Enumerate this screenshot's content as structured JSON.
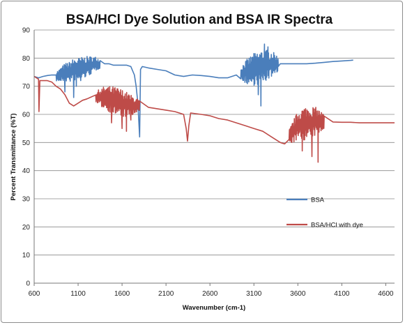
{
  "chart_data": {
    "type": "line",
    "title": "BSA/HCl Dye Solution and BSA IR Spectra",
    "xlabel": "Wavenumber (cm-1)",
    "ylabel": "Percent Transmittance (%T)",
    "xlim": [
      600,
      4700
    ],
    "ylim": [
      0,
      90
    ],
    "x_ticks": [
      600,
      1100,
      1600,
      2100,
      2600,
      3100,
      3600,
      4100,
      4600
    ],
    "y_ticks": [
      0,
      10,
      20,
      30,
      40,
      50,
      60,
      70,
      80,
      90
    ],
    "grid": "horizontal",
    "legend_position": "right",
    "series": [
      {
        "name": "BSA",
        "color": "#4a7ebb",
        "points": [
          [
            600,
            73.5
          ],
          [
            650,
            73
          ],
          [
            700,
            73.5
          ],
          [
            750,
            73.8
          ],
          [
            800,
            74
          ],
          [
            850,
            73.5
          ],
          [
            900,
            74
          ],
          [
            950,
            75
          ],
          [
            1000,
            75
          ],
          [
            1050,
            76
          ],
          [
            1100,
            76
          ],
          [
            1150,
            76.5
          ],
          [
            1200,
            77
          ],
          [
            1250,
            77.5
          ],
          [
            1300,
            78
          ],
          [
            1350,
            78
          ],
          [
            1400,
            78
          ],
          [
            1450,
            78
          ],
          [
            1500,
            77.5
          ],
          [
            1550,
            77.5
          ],
          [
            1600,
            77.5
          ],
          [
            1650,
            77.5
          ],
          [
            1700,
            77
          ],
          [
            1740,
            74
          ],
          [
            1760,
            70
          ],
          [
            1780,
            64
          ],
          [
            1800,
            52
          ],
          [
            1810,
            76
          ],
          [
            1830,
            77
          ],
          [
            1900,
            76.5
          ],
          [
            2000,
            76
          ],
          [
            2100,
            75.5
          ],
          [
            2200,
            74
          ],
          [
            2300,
            73.5
          ],
          [
            2400,
            74
          ],
          [
            2500,
            73.8
          ],
          [
            2600,
            73.5
          ],
          [
            2700,
            73
          ],
          [
            2800,
            73
          ],
          [
            2900,
            74
          ],
          [
            3000,
            75
          ],
          [
            3100,
            76
          ],
          [
            3200,
            77
          ],
          [
            3300,
            78
          ],
          [
            3400,
            78
          ],
          [
            3500,
            78
          ],
          [
            3600,
            78
          ],
          [
            3700,
            78
          ],
          [
            3800,
            78.2
          ],
          [
            3900,
            78.5
          ],
          [
            4000,
            78.8
          ],
          [
            4100,
            79
          ],
          [
            4200,
            79.2
          ],
          [
            4230,
            79.3
          ]
        ],
        "noise_regions": [
          {
            "from": 850,
            "to": 1350,
            "amplitude": 4,
            "spikes": [
              [
                950,
                68
              ],
              [
                1050,
                66
              ],
              [
                1080,
                70
              ],
              [
                1100,
                73
              ],
              [
                1130,
                72
              ]
            ]
          },
          {
            "from": 2950,
            "to": 3380,
            "amplitude": 6,
            "spikes": [
              [
                3150,
                67
              ],
              [
                3180,
                63
              ],
              [
                3220,
                85
              ],
              [
                3260,
                84
              ]
            ]
          }
        ]
      },
      {
        "name": "BSA/HCl with dye",
        "color": "#be4b48",
        "points": [
          [
            600,
            73.5
          ],
          [
            650,
            72.5
          ],
          [
            655,
            61
          ],
          [
            665,
            72
          ],
          [
            700,
            72
          ],
          [
            750,
            72
          ],
          [
            800,
            71.5
          ],
          [
            850,
            70
          ],
          [
            900,
            69
          ],
          [
            950,
            67
          ],
          [
            1000,
            64
          ],
          [
            1050,
            63
          ],
          [
            1100,
            64
          ],
          [
            1150,
            65
          ],
          [
            1200,
            65.5
          ],
          [
            1300,
            66
          ],
          [
            1400,
            66
          ],
          [
            1500,
            65
          ],
          [
            1600,
            64
          ],
          [
            1700,
            63
          ],
          [
            1800,
            63
          ],
          [
            1900,
            62.5
          ],
          [
            2000,
            62
          ],
          [
            2100,
            61.5
          ],
          [
            2200,
            61
          ],
          [
            2300,
            60
          ],
          [
            2330,
            55
          ],
          [
            2345,
            50.5
          ],
          [
            2360,
            56
          ],
          [
            2380,
            60.5
          ],
          [
            2500,
            60
          ],
          [
            2600,
            59.5
          ],
          [
            2700,
            58.5
          ],
          [
            2800,
            58
          ],
          [
            2900,
            57
          ],
          [
            3000,
            56
          ],
          [
            3100,
            55
          ],
          [
            3200,
            54
          ],
          [
            3300,
            52
          ],
          [
            3400,
            50
          ],
          [
            3450,
            49.5
          ],
          [
            3500,
            52
          ],
          [
            3600,
            56
          ],
          [
            3700,
            57
          ],
          [
            3800,
            57.5
          ],
          [
            3900,
            57.5
          ],
          [
            4000,
            57.3
          ],
          [
            4100,
            57.2
          ],
          [
            4200,
            57.2
          ],
          [
            4300,
            57
          ],
          [
            4400,
            57
          ],
          [
            4500,
            57
          ],
          [
            4600,
            57
          ],
          [
            4700,
            57
          ]
        ],
        "noise_regions": [
          {
            "from": 1300,
            "to": 1800,
            "amplitude": 5,
            "spikes": [
              [
                1480,
                57
              ],
              [
                1600,
                55
              ],
              [
                1650,
                54
              ],
              [
                1700,
                58
              ]
            ]
          },
          {
            "from": 3500,
            "to": 3900,
            "amplitude": 6,
            "spikes": [
              [
                3650,
                47
              ],
              [
                3760,
                45
              ],
              [
                3830,
                43
              ]
            ]
          }
        ]
      }
    ]
  }
}
